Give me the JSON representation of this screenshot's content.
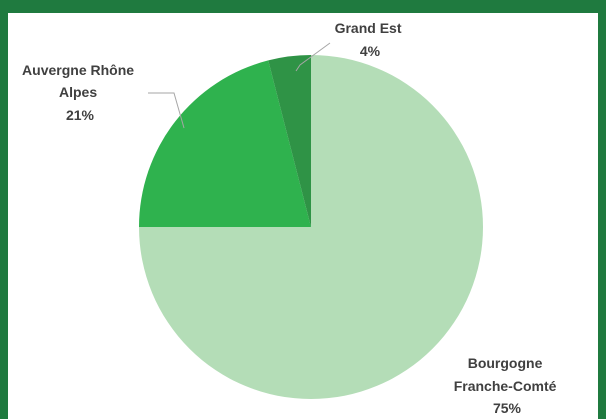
{
  "chart_data": {
    "type": "pie",
    "slices": [
      {
        "name_lines": [
          "Bourgogne",
          "Franche-Comté"
        ],
        "value_label": "75%",
        "value": 75,
        "color": "#b4ddb7"
      },
      {
        "name_lines": [
          "Auvergne Rhône",
          "Alpes"
        ],
        "value_label": "21%",
        "value": 21,
        "color": "#2fb24e"
      },
      {
        "name_lines": [
          "Grand Est"
        ],
        "value_label": "4%",
        "value": 4,
        "color": "#2f9346"
      }
    ],
    "start": "top",
    "direction": "clockwise",
    "legend": "none"
  },
  "colors": {
    "frame_border": "#1f7a3f",
    "background": "#ffffff",
    "label_text": "#404040",
    "leader_line": "#a6a6a6"
  }
}
